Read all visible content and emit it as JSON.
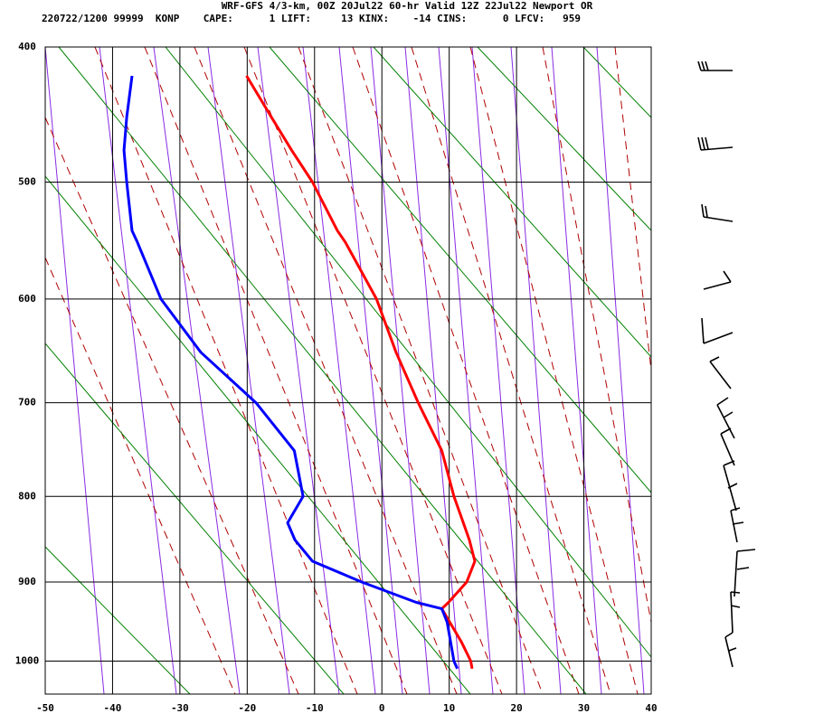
{
  "chart_data": {
    "type": "line",
    "title": "WRF-GFS 4/3-km, 00Z 20Jul22 60-hr Valid 12Z 22Jul22 Newport OR",
    "subtitle": "220722/1200 99999  KONP    CAPE:      1 LIFT:     13 KINX:    -14 CINS:      0 LFCV:   959",
    "y": [
      420,
      450,
      475,
      500,
      540,
      550,
      600,
      650,
      700,
      750,
      800,
      830,
      850,
      875,
      900,
      925,
      933,
      950,
      975,
      1000,
      1010
    ],
    "series": [
      {
        "color": "#ff0000",
        "values": [
          -20.1,
          -16.4,
          -13.4,
          -10.3,
          -6.6,
          -5.4,
          -0.8,
          2.1,
          5.4,
          8.9,
          10.7,
          12.1,
          13.0,
          13.8,
          12.6,
          9.9,
          8.9,
          10.1,
          11.8,
          13.2,
          13.4
        ]
      },
      {
        "color": "#0000ff",
        "values": [
          -37.1,
          -37.9,
          -38.3,
          -37.9,
          -37.1,
          -36.3,
          -32.8,
          -26.9,
          -18.7,
          -13.0,
          -11.7,
          -14.0,
          -12.9,
          -10.3,
          -3.0,
          5.1,
          8.9,
          9.7,
          10.2,
          10.7,
          11.2
        ]
      }
    ],
    "xlim": [
      -50,
      40
    ],
    "xticks": [
      -50,
      -40,
      -30,
      -20,
      -10,
      0,
      10,
      20,
      30,
      40
    ],
    "ylim": [
      1044,
      400
    ],
    "yticks": [
      400,
      500,
      600,
      700,
      800,
      900,
      1000
    ],
    "grid": true
  }
}
